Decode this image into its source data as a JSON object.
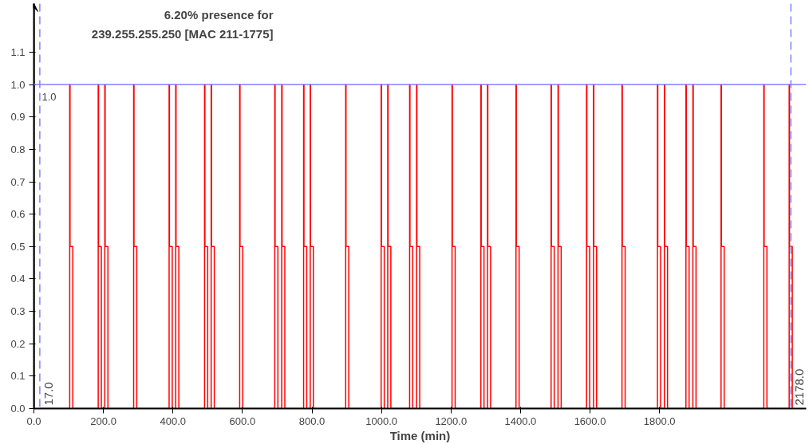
{
  "chart_data": {
    "type": "step",
    "title": "6.20% presence for\n239.255.255.250 [MAC 211-1775]",
    "xlabel": "Time (min)",
    "x": [
      17,
      103,
      104,
      112,
      185,
      186,
      194,
      204,
      205,
      213,
      287,
      288,
      296,
      389,
      390,
      398,
      408,
      409,
      417,
      491,
      492,
      500,
      510,
      511,
      519,
      592,
      593,
      601,
      693,
      694,
      702,
      713,
      714,
      722,
      776,
      777,
      785,
      795,
      796,
      804,
      897,
      898,
      906,
      999,
      1000,
      1008,
      1018,
      1019,
      1027,
      1081,
      1082,
      1090,
      1101,
      1102,
      1110,
      1203,
      1204,
      1212,
      1286,
      1287,
      1295,
      1305,
      1306,
      1314,
      1387,
      1388,
      1396,
      1488,
      1489,
      1497,
      1508,
      1509,
      1517,
      1590,
      1591,
      1599,
      1610,
      1611,
      1619,
      1692,
      1693,
      1701,
      1794,
      1795,
      1803,
      1814,
      1815,
      1823,
      1876,
      1877,
      1885,
      1896,
      1897,
      1905,
      1977,
      1978,
      1986,
      2100,
      2101,
      2109,
      2173,
      2174,
      2182
    ],
    "values": [
      0,
      1,
      0.5,
      0,
      1,
      0.5,
      0,
      1,
      0.5,
      0,
      1,
      0.5,
      0,
      1,
      0.5,
      0,
      1,
      0.5,
      0,
      1,
      0.5,
      0,
      1,
      0.5,
      0,
      1,
      0.5,
      0,
      1,
      0.5,
      0,
      1,
      0.5,
      0,
      1,
      0.5,
      0,
      1,
      0.5,
      0,
      1,
      0.5,
      0,
      1,
      0.5,
      0,
      1,
      0.5,
      0,
      1,
      0.5,
      0,
      1,
      0.5,
      0,
      1,
      0.5,
      0,
      1,
      0.5,
      0,
      1,
      0.5,
      0,
      1,
      0.5,
      0,
      1,
      0.5,
      0,
      1,
      0.5,
      0,
      1,
      0.5,
      0,
      1,
      0.5,
      0,
      1,
      0.5,
      0,
      1,
      0.5,
      0,
      1,
      0.5,
      0,
      1,
      0.5,
      0,
      1,
      0.5,
      0,
      1,
      0.5,
      0,
      1,
      0.5,
      0,
      1,
      0.5,
      0
    ],
    "color": "#ff0000",
    "xlim": [
      0,
      2222
    ],
    "ylim": [
      0,
      1.25
    ],
    "xticks": [
      {
        "value": 0,
        "label": "0.0"
      },
      {
        "value": 200,
        "label": "200.0"
      },
      {
        "value": 400,
        "label": "400.0"
      },
      {
        "value": 600,
        "label": "600.0"
      },
      {
        "value": 800,
        "label": "800.0"
      },
      {
        "value": 1000,
        "label": "1000.0"
      },
      {
        "value": 1200,
        "label": "1200.0"
      },
      {
        "value": 1400,
        "label": "1400.0"
      },
      {
        "value": 1600,
        "label": "1600.0"
      },
      {
        "value": 1800,
        "label": "1800.0"
      }
    ],
    "yticks": [
      {
        "value": 0,
        "label": "0.0"
      },
      0.1,
      0.2,
      0.3,
      0.4,
      0.5,
      0.6,
      0.7,
      0.8,
      0.9,
      {
        "value": 1,
        "label": "1.0"
      },
      1.1
    ],
    "ref_lines": [
      {
        "axis": "y",
        "value": 1.0,
        "label": "1.0",
        "color": "#8080ff",
        "line_style": "solid"
      },
      {
        "axis": "x",
        "value": 17,
        "label": "17.0",
        "color": "#8080ff",
        "line_style": "dashed"
      },
      {
        "axis": "x",
        "value": 2178,
        "label": "2178.0",
        "color": "#8080ff",
        "line_style": "dashed"
      }
    ],
    "grid": false,
    "marker": "none",
    "line_style": "solid"
  }
}
